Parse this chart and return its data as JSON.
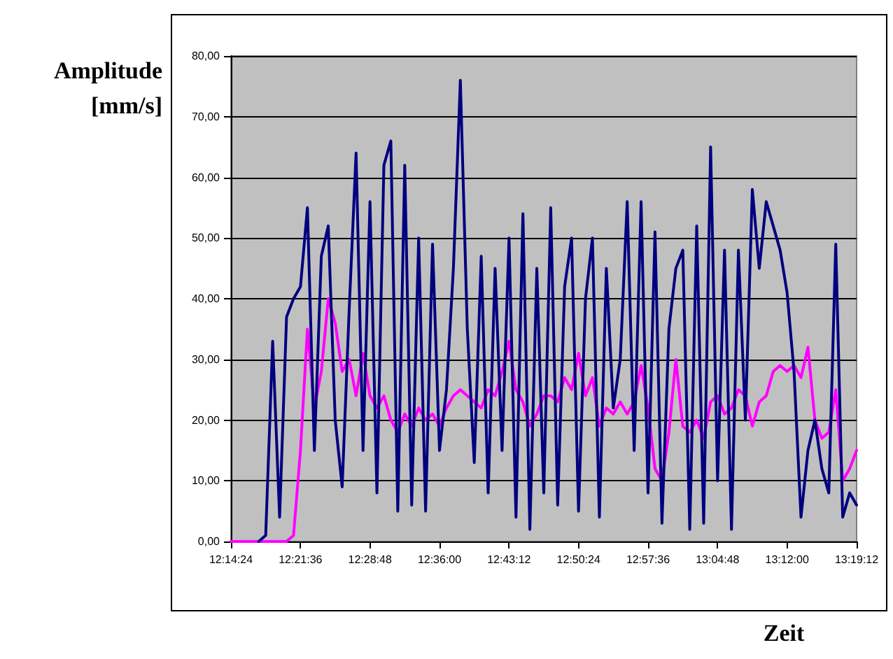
{
  "chart_data": {
    "type": "line",
    "xlabel": "Zeit",
    "ylabel": "Amplitude [mm/s]",
    "x": [
      12.24,
      12.252,
      12.264,
      12.276,
      12.288,
      12.3,
      12.312,
      12.324,
      12.336,
      12.348,
      12.36,
      12.372,
      12.384,
      12.396,
      12.408,
      12.42,
      12.432,
      12.444,
      12.456,
      12.468,
      12.48,
      12.492,
      12.504,
      12.516,
      12.528,
      12.54,
      12.552,
      12.564,
      12.576,
      12.588,
      12.6,
      12.612,
      12.624,
      12.636,
      12.648,
      12.66,
      12.672,
      12.684,
      12.696,
      12.708,
      12.72,
      12.732,
      12.744,
      12.756,
      12.768,
      12.78,
      12.792,
      12.804,
      12.816,
      12.828,
      12.84,
      12.852,
      12.864,
      12.876,
      12.888,
      12.9,
      12.912,
      12.924,
      12.936,
      12.948,
      12.96,
      12.972,
      12.984,
      12.996,
      13.008,
      13.02,
      13.032,
      13.044,
      13.056,
      13.068,
      13.08,
      13.092,
      13.104,
      13.116,
      13.128,
      13.14,
      13.152,
      13.164,
      13.176,
      13.188,
      13.2,
      13.212,
      13.224,
      13.236,
      13.248,
      13.26,
      13.272,
      13.284,
      13.296,
      13.308,
      13.32
    ],
    "series": [
      {
        "color": "#000080",
        "values": [
          null,
          null,
          null,
          null,
          0,
          1,
          33,
          4,
          37,
          40,
          42,
          55,
          15,
          47,
          52,
          20,
          9,
          38,
          64,
          15,
          56,
          8,
          62,
          66,
          5,
          62,
          6,
          50,
          5,
          49,
          15,
          25,
          45,
          76,
          35,
          13,
          47,
          8,
          45,
          15,
          50,
          4,
          54,
          2,
          45,
          8,
          55,
          6,
          42,
          50,
          5,
          40,
          50,
          4,
          45,
          22,
          30,
          56,
          15,
          56,
          8,
          51,
          3,
          35,
          45,
          48,
          2,
          52,
          3,
          65,
          10,
          48,
          2,
          48,
          20,
          58,
          45,
          56,
          52,
          48,
          41,
          28,
          4,
          15,
          20,
          12,
          8,
          49,
          4,
          8,
          6
        ]
      },
      {
        "color": "#ff00ff",
        "values": [
          0,
          0,
          0,
          0,
          0,
          0,
          0,
          0,
          0,
          1,
          15,
          35,
          22,
          28,
          40,
          36,
          28,
          30,
          24,
          31,
          24,
          22,
          24,
          20,
          18,
          21,
          19,
          22,
          20,
          21,
          19,
          22,
          24,
          25,
          24,
          23,
          22,
          25,
          24,
          28,
          33,
          25,
          23,
          19,
          21,
          24,
          24,
          23,
          27,
          25,
          31,
          24,
          27,
          19,
          22,
          21,
          23,
          21,
          23,
          29,
          22,
          12,
          10,
          18,
          30,
          19,
          18,
          20,
          17,
          23,
          24,
          21,
          22,
          25,
          24,
          19,
          23,
          24,
          28,
          29,
          28,
          29,
          27,
          32,
          20,
          17,
          18,
          25,
          10,
          12,
          15
        ]
      }
    ],
    "xlim": [
      12.24,
      13.32
    ],
    "xticks": [
      {
        "value": 12.24,
        "label": "12:14:24"
      },
      {
        "value": 12.36,
        "label": "12:21:36"
      },
      {
        "value": 12.48,
        "label": "12:28:48"
      },
      {
        "value": 12.6,
        "label": "12:36:00"
      },
      {
        "value": 12.72,
        "label": "12:43:12"
      },
      {
        "value": 12.84,
        "label": "12:50:24"
      },
      {
        "value": 12.96,
        "label": "12:57:36"
      },
      {
        "value": 13.08,
        "label": "13:04:48"
      },
      {
        "value": 13.2,
        "label": "13:12:00"
      },
      {
        "value": 13.32,
        "label": "13:19:12"
      }
    ],
    "ylim": [
      0,
      80
    ],
    "yticks": [
      {
        "value": 0,
        "label": "0,00"
      },
      {
        "value": 10,
        "label": "10,00"
      },
      {
        "value": 20,
        "label": "20,00"
      },
      {
        "value": 30,
        "label": "30,00"
      },
      {
        "value": 40,
        "label": "40,00"
      },
      {
        "value": 50,
        "label": "50,00"
      },
      {
        "value": 60,
        "label": "60,00"
      },
      {
        "value": 70,
        "label": "70,00"
      },
      {
        "value": 80,
        "label": "80,00"
      }
    ],
    "grid": "y",
    "marker": "none",
    "line_style": "solid"
  }
}
